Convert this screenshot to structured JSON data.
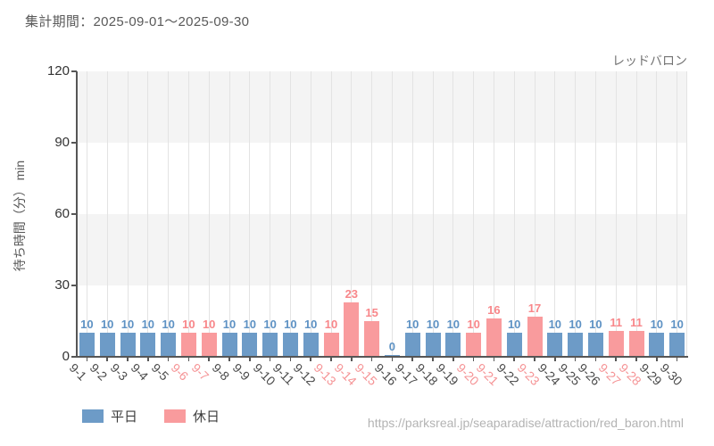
{
  "header": {
    "title": "集計期間：2025-09-01～2025-09-30"
  },
  "footer": {
    "url": "https://parksreal.jp/seaparadise/attraction/red_baron.html"
  },
  "legend": {
    "items": [
      {
        "label": "平日",
        "series": "weekday"
      },
      {
        "label": "休日",
        "series": "holiday"
      }
    ]
  },
  "colors": {
    "weekday_bar": "#6d9bc7",
    "weekday_label": "#5e92c4",
    "holiday_bar": "#f99b9d",
    "holiday_label": "#f8878a",
    "weekday_axis_text": "#4a4a4a",
    "holiday_axis_text": "#f59395",
    "ytick_text": "#333333",
    "band_gray": "#f4f4f4",
    "band_white": "#ffffff",
    "gridline": "#e3e3e3",
    "axis_line": "#565656"
  },
  "chart_data": {
    "type": "bar",
    "title": "レッドバロン",
    "xlabel": "",
    "ylabel": "待ち時間（分） min",
    "ylim": [
      0,
      120
    ],
    "yticks": [
      0,
      30,
      60,
      90,
      120
    ],
    "grid": "vertical-lines-at-ticks + horizontal-alternating-bands",
    "legend_position": "bottom-left",
    "legend_entries": [
      "平日",
      "休日"
    ],
    "categories": [
      "9-1",
      "9-2",
      "9-3",
      "9-4",
      "9-5",
      "9-6",
      "9-7",
      "9-8",
      "9-9",
      "9-10",
      "9-11",
      "9-12",
      "9-13",
      "9-14",
      "9-15",
      "9-16",
      "9-17",
      "9-18",
      "9-19",
      "9-20",
      "9-21",
      "9-22",
      "9-23",
      "9-24",
      "9-25",
      "9-26",
      "9-27",
      "9-28",
      "9-29",
      "9-30"
    ],
    "values": [
      10,
      10,
      10,
      10,
      10,
      10,
      10,
      10,
      10,
      10,
      10,
      10,
      10,
      23,
      15,
      0,
      10,
      10,
      10,
      10,
      16,
      10,
      17,
      10,
      10,
      10,
      11,
      11,
      10,
      10
    ],
    "day_type": [
      "weekday",
      "weekday",
      "weekday",
      "weekday",
      "weekday",
      "holiday",
      "holiday",
      "weekday",
      "weekday",
      "weekday",
      "weekday",
      "weekday",
      "holiday",
      "holiday",
      "holiday",
      "weekday",
      "weekday",
      "weekday",
      "weekday",
      "holiday",
      "holiday",
      "weekday",
      "holiday",
      "weekday",
      "weekday",
      "weekday",
      "holiday",
      "holiday",
      "weekday",
      "weekday"
    ],
    "value_labels_shown": true
  }
}
